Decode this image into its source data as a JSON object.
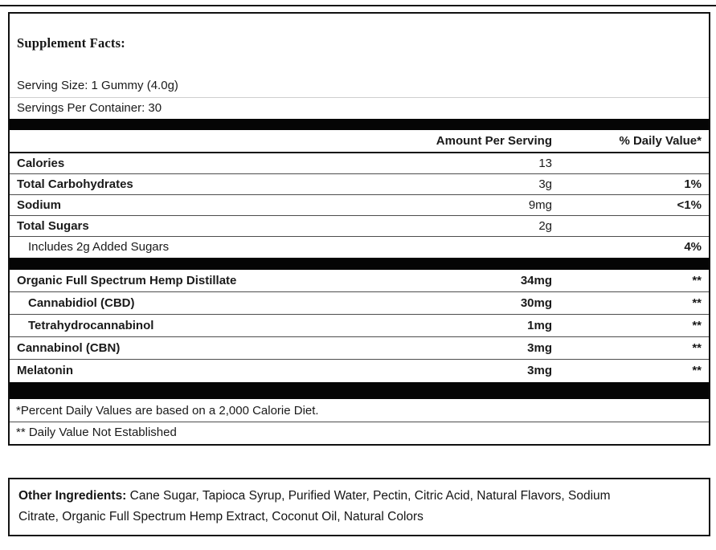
{
  "label": {
    "title": "Supplement Facts:",
    "serving_size": "Serving Size: 1 Gummy (4.0g)",
    "servings_per_container": "Servings Per Container: 30",
    "header": {
      "amount": "Amount Per Serving",
      "daily_value": "% Daily Value*"
    },
    "nutrition_rows": [
      {
        "name": "Calories",
        "amount": "13",
        "daily_value": ""
      },
      {
        "name": "Total Carbohydrates",
        "amount": "3g",
        "daily_value": "1%"
      },
      {
        "name": "Sodium",
        "amount": "9mg",
        "daily_value": "<1%"
      },
      {
        "name": "Total Sugars",
        "amount": "2g",
        "daily_value": ""
      },
      {
        "name": "Includes 2g Added Sugars",
        "amount": "",
        "daily_value": "4%"
      }
    ],
    "supplement_rows": [
      {
        "name": "Organic Full Spectrum Hemp Distillate",
        "amount": "34mg",
        "daily_value": "**"
      },
      {
        "name": "Cannabidiol (CBD)",
        "amount": "30mg",
        "daily_value": "**"
      },
      {
        "name": "Tetrahydrocannabinol",
        "amount": "1mg",
        "daily_value": "**"
      },
      {
        "name": "Cannabinol (CBN)",
        "amount": "3mg",
        "daily_value": "**"
      },
      {
        "name": "Melatonin",
        "amount": "3mg",
        "daily_value": "**"
      }
    ],
    "footnotes": [
      "*Percent Daily Values are based on a 2,000 Calorie Diet.",
      "** Daily Value Not Established"
    ]
  },
  "other_ingredients": {
    "label": "Other Ingredients:",
    "line1_rest": "Cane Sugar, Tapioca Syrup, Purified Water, Pectin, Citric Acid, Natural Flavors, Sodium",
    "line2": "Citrate, Organic Full Spectrum Hemp Extract, Coconut Oil, Natural Colors"
  },
  "colors": {
    "separator_bar": "#050505",
    "text": "#1a1a1a",
    "background": "#ffffff"
  }
}
